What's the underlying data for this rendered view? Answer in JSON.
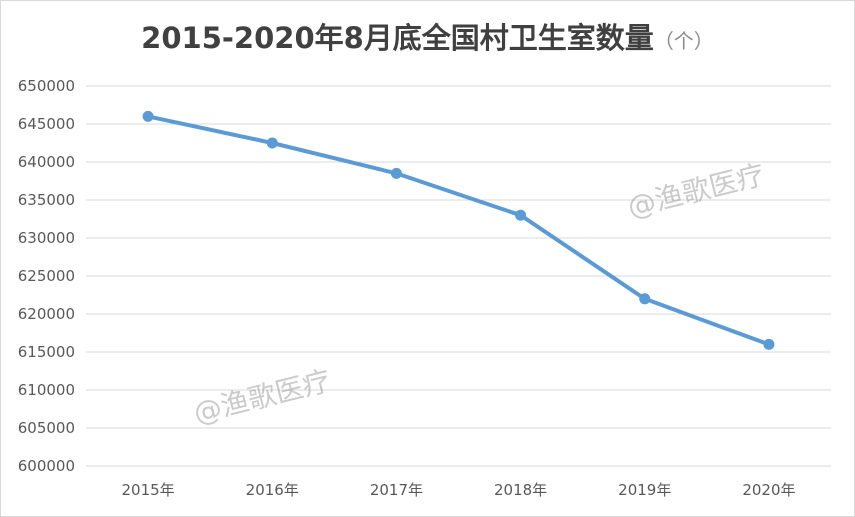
{
  "title": {
    "main": "2015-2020年8月底全国村卫生室数量",
    "unit": "（个）"
  },
  "watermarks": [
    "@渔歌医疗",
    "@渔歌医疗"
  ],
  "chart_data": {
    "type": "line",
    "categories": [
      "2015年",
      "2016年",
      "2017年",
      "2018年",
      "2019年",
      "2020年"
    ],
    "series": [
      {
        "values": [
          646000,
          642500,
          638500,
          633000,
          622000,
          616000
        ]
      }
    ],
    "y_ticks": [
      "650000",
      "645000",
      "640000",
      "635000",
      "630000",
      "625000",
      "620000",
      "615000",
      "610000",
      "605000",
      "600000"
    ],
    "ylim": [
      600000,
      650000
    ],
    "grid": true,
    "legend": "none",
    "colors": {
      "line": "#5b9bd5",
      "grid": "#d9d9d9"
    }
  }
}
